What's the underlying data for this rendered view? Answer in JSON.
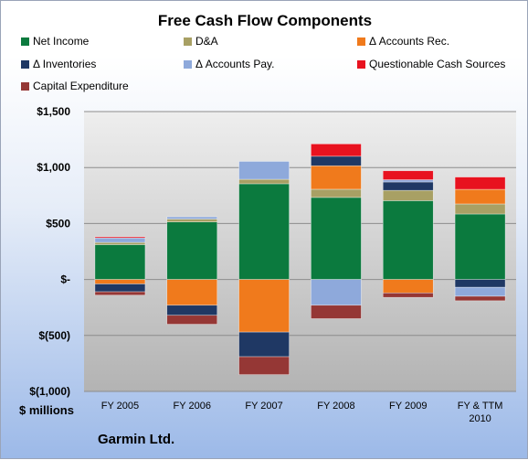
{
  "chart_data": {
    "type": "bar",
    "stacked": true,
    "title": "Free Cash Flow Components",
    "company": "Garmin Ltd.",
    "units": "$ millions",
    "categories": [
      "FY 2005",
      "FY 2006",
      "FY 2007",
      "FY 2008",
      "FY 2009",
      "FY & TTM 2010"
    ],
    "ylim": [
      -1000,
      1500
    ],
    "yticks": [
      -1000,
      -500,
      0,
      500,
      1000,
      1500
    ],
    "ytick_labels": [
      "$(1,000)",
      "$(500)",
      "$-",
      "$500",
      "$1,000",
      "$1,500"
    ],
    "legend_position": "top",
    "series": [
      {
        "name": "Net Income",
        "color": "#0b7a3e",
        "values": [
          311,
          514,
          855,
          733,
          704,
          585
        ]
      },
      {
        "name": "D&A",
        "color": "#a8a064",
        "values": [
          20,
          26,
          40,
          73,
          92,
          90
        ]
      },
      {
        "name": "Δ Accounts Rec.",
        "color": "#f07a1c",
        "values": [
          -40,
          -230,
          -470,
          210,
          -120,
          130
        ]
      },
      {
        "name": "Δ Inventories",
        "color": "#1f3864",
        "values": [
          -70,
          -90,
          -220,
          85,
          75,
          -70
        ]
      },
      {
        "name": "Δ Accounts Pay.",
        "color": "#8ea9db",
        "values": [
          40,
          20,
          160,
          -230,
          20,
          -80
        ]
      },
      {
        "name": "Questionable Cash Sources",
        "color": "#e8121f",
        "values": [
          10,
          0,
          0,
          110,
          80,
          110
        ]
      },
      {
        "name": "Capital Expenditure",
        "color": "#953735",
        "values": [
          -30,
          -80,
          -160,
          -120,
          -40,
          -40
        ]
      }
    ]
  }
}
